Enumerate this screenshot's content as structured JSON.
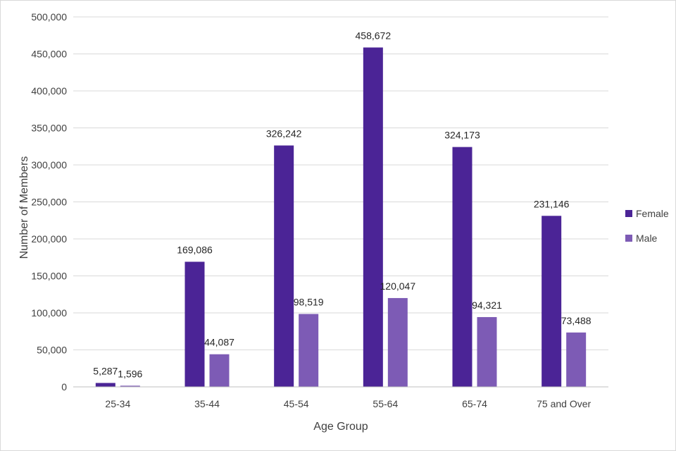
{
  "chart_data": {
    "type": "bar",
    "xlabel": "Age Group",
    "ylabel": "Number of Members",
    "categories": [
      "25-34",
      "35-44",
      "45-54",
      "55-64",
      "65-74",
      "75 and Over"
    ],
    "series": [
      {
        "name": "Female",
        "color": "#4b2496",
        "values": [
          5287,
          169086,
          326242,
          458672,
          324173,
          231146
        ],
        "labels": [
          "5,287",
          "169,086",
          "326,242",
          "458,672",
          "324,173",
          "231,146"
        ]
      },
      {
        "name": "Male",
        "color": "#7d5bb5",
        "values": [
          1596,
          44087,
          98519,
          120047,
          94321,
          73488
        ],
        "labels": [
          "1,596",
          "44,087",
          "98,519",
          "120,047",
          "94,321",
          "73,488"
        ]
      }
    ],
    "ylim": [
      0,
      500000
    ],
    "yticks": [
      0,
      50000,
      100000,
      150000,
      200000,
      250000,
      300000,
      350000,
      400000,
      450000,
      500000
    ],
    "ytick_labels": [
      "0",
      "50,000",
      "100,000",
      "150,000",
      "200,000",
      "250,000",
      "300,000",
      "350,000",
      "400,000",
      "450,000",
      "500,000"
    ],
    "grid": true,
    "legend_position": "right"
  }
}
